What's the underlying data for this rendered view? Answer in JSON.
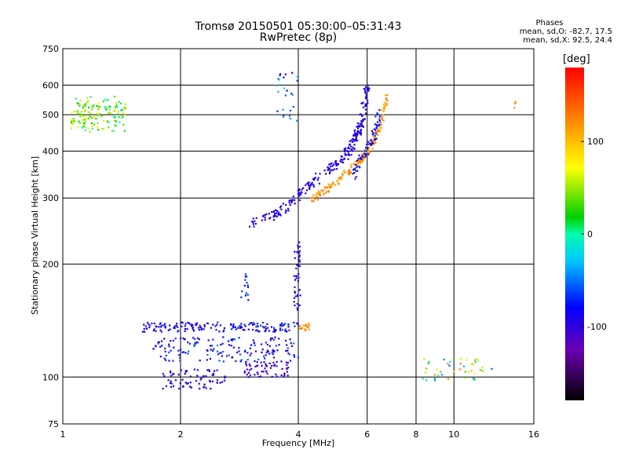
{
  "chart_data": {
    "type": "scatter",
    "title": "Tromsø 20150501 05:30:00–05:31:43",
    "subtitle": "RwPretec (8p)",
    "xlabel": "Frequency [MHz]",
    "ylabel": "Stationary phase Virtual Height [km]",
    "x_scale": "log",
    "y_scale": "log",
    "xlim": [
      1,
      16
    ],
    "ylim": [
      75,
      750
    ],
    "x_ticks": [
      1,
      2,
      4,
      6,
      8,
      10,
      16
    ],
    "x_tick_labels": [
      "1",
      "2",
      "4",
      "6",
      "8",
      "10",
      "16"
    ],
    "y_ticks": [
      75,
      100,
      200,
      300,
      400,
      500,
      600,
      750
    ],
    "y_tick_labels": [
      "75",
      "100",
      "200",
      "300",
      "400",
      "500",
      "600",
      "750"
    ],
    "grid": true,
    "colorbar": {
      "label": "[deg]",
      "range": [
        -180,
        180
      ],
      "ticks": [
        100,
        0,
        -100
      ],
      "tick_labels": [
        "100",
        "0",
        "-100"
      ]
    },
    "stats": {
      "header": "Phases",
      "line1": "mean, sd,O: -82.7, 17.5",
      "line2": "mean, sd,X:  92.5, 24.4"
    },
    "clusters": [
      {
        "f": [
          1.05,
          1.45
        ],
        "h": [
          450,
          560
        ],
        "phase": [
          -20,
          90
        ],
        "n": 110
      },
      {
        "f": [
          1.05,
          1.25
        ],
        "h": [
          470,
          540
        ],
        "phase": [
          20,
          70
        ],
        "n": 40
      },
      {
        "f": [
          1.6,
          4.0
        ],
        "h": [
          132,
          140
        ],
        "phase": [
          -120,
          -60
        ],
        "n": 160
      },
      {
        "f": [
          1.7,
          4.0
        ],
        "h": [
          110,
          128
        ],
        "phase": [
          -120,
          -50
        ],
        "n": 160
      },
      {
        "f": [
          1.8,
          2.6
        ],
        "h": [
          93,
          105
        ],
        "phase": [
          -120,
          -80
        ],
        "n": 70
      },
      {
        "f": [
          2.9,
          3.8
        ],
        "h": [
          100,
          110
        ],
        "phase": [
          -130,
          -90
        ],
        "n": 60
      },
      {
        "f": [
          2.85,
          3.0
        ],
        "h": [
          160,
          190
        ],
        "phase": [
          -90,
          -60
        ],
        "n": 15
      },
      {
        "f": [
          3.9,
          4.05
        ],
        "h": [
          150,
          230
        ],
        "phase": [
          -120,
          -80
        ],
        "n": 40
      },
      {
        "f": [
          4.0,
          4.3
        ],
        "h": [
          133,
          140
        ],
        "phase": [
          100,
          140
        ],
        "n": 18
      },
      {
        "f": [
          8.3,
          12.5
        ],
        "h": [
          98,
          112
        ],
        "phase": [
          -60,
          130
        ],
        "n": 45
      },
      {
        "f": [
          3.5,
          4.0
        ],
        "h": [
          480,
          650
        ],
        "phase": [
          -120,
          -20
        ],
        "n": 25
      },
      {
        "f": [
          14.2,
          14.4
        ],
        "h": [
          520,
          580
        ],
        "phase": [
          100,
          140
        ],
        "n": 4
      }
    ],
    "traces": [
      {
        "f": [
          3.0,
          3.6,
          4.2,
          4.8,
          5.3,
          5.6,
          5.8,
          6.0
        ],
        "h": [
          255,
          275,
          320,
          360,
          390,
          430,
          480,
          600
        ],
        "phase": [
          -120,
          -80
        ],
        "n": 260,
        "spread": 0.06
      },
      {
        "f": [
          4.3,
          4.8,
          5.3,
          5.8,
          6.2,
          6.5,
          6.7
        ],
        "h": [
          295,
          320,
          350,
          380,
          420,
          470,
          560
        ],
        "phase": [
          100,
          140
        ],
        "n": 170,
        "spread": 0.04
      },
      {
        "f": [
          5.5,
          5.8,
          6.2,
          6.5
        ],
        "h": [
          340,
          380,
          430,
          520
        ],
        "phase": [
          -110,
          -60
        ],
        "n": 70,
        "spread": 0.05
      }
    ]
  }
}
